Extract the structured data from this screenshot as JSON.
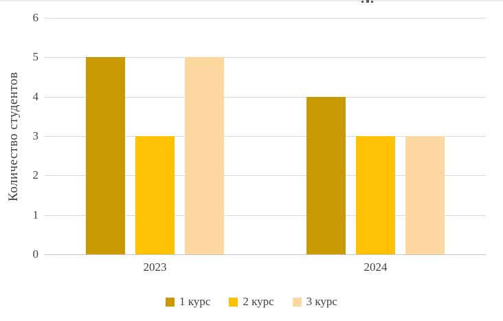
{
  "chart_data": {
    "type": "bar",
    "title": "",
    "categories": [
      "2023",
      "2024"
    ],
    "series": [
      {
        "name": "1 курс",
        "color": "#c99a06",
        "values": [
          5,
          4
        ]
      },
      {
        "name": "2 курс",
        "color": "#ffc103",
        "values": [
          3,
          3
        ]
      },
      {
        "name": "3 курс",
        "color": "#fcd8a0",
        "values": [
          5,
          3
        ]
      }
    ],
    "xlabel": "",
    "ylabel": "Количество студентов",
    "ylim": [
      0,
      6
    ],
    "yticks": [
      "0",
      "1",
      "2",
      "3",
      "4",
      "5",
      "6"
    ],
    "grid": true,
    "legend_position": "bottom"
  },
  "colors": {
    "gridline": "#d9d9d9",
    "axis_line": "#c8c8c8",
    "axis_text": "#3f3f3f",
    "background": "#ffffff"
  }
}
